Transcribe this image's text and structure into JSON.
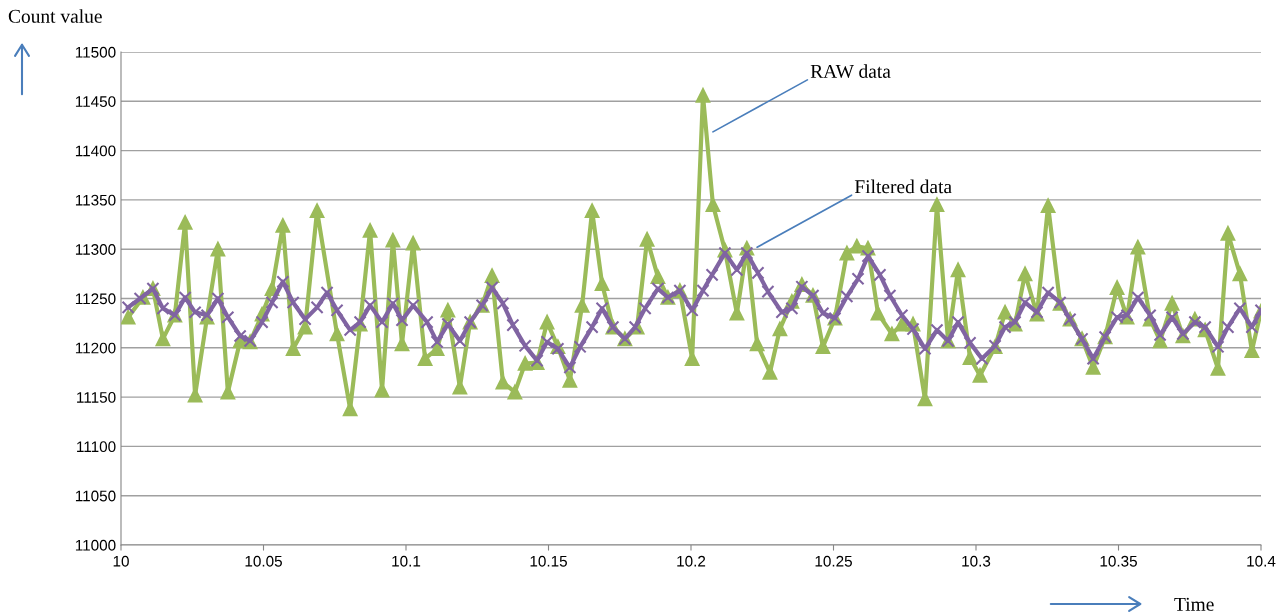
{
  "chart_data": {
    "type": "line",
    "xlabel": "Time",
    "ylabel": "Count value",
    "xlim": [
      10,
      10.4
    ],
    "xticks": [
      10,
      10.05,
      10.1,
      10.15,
      10.2,
      10.25,
      10.3,
      10.35,
      10.4
    ],
    "ylim": [
      11000,
      11500
    ],
    "yticks": [
      11000,
      11050,
      11100,
      11150,
      11200,
      11250,
      11300,
      11350,
      11400,
      11450,
      11500
    ],
    "grid": "y",
    "annotations": [
      {
        "text": "RAW data",
        "x": 10.2077,
        "y": 11419
      },
      {
        "text": "Filtered data",
        "x": 10.2232,
        "y": 11302
      }
    ],
    "series": [
      {
        "color": "#9bbb59",
        "marker": "triangle",
        "line_style": "solid",
        "x": [
          10.0025,
          10.0077,
          10.0112,
          10.0147,
          10.0189,
          10.0225,
          10.026,
          10.0302,
          10.034,
          10.0375,
          10.0418,
          10.0453,
          10.0495,
          10.053,
          10.0568,
          10.0604,
          10.0646,
          10.0688,
          10.0758,
          10.0804,
          10.0839,
          10.0874,
          10.0916,
          10.0954,
          10.0986,
          10.1025,
          10.1067,
          10.1109,
          10.1147,
          10.1189,
          10.1225,
          10.1267,
          10.1302,
          10.134,
          10.1382,
          10.1418,
          10.146,
          10.1495,
          10.1533,
          10.1575,
          10.1618,
          10.1653,
          10.1688,
          10.1726,
          10.1768,
          10.1811,
          10.1846,
          10.1884,
          10.1919,
          10.1961,
          10.2004,
          10.2042,
          10.2077,
          10.2119,
          10.2161,
          10.2196,
          10.2232,
          10.2277,
          10.2312,
          10.2354,
          10.2389,
          10.2428,
          10.2463,
          10.2505,
          10.2547,
          10.2582,
          10.2621,
          10.2656,
          10.2705,
          10.274,
          10.2779,
          10.2821,
          10.2863,
          10.2902,
          10.2937,
          10.2979,
          10.3014,
          10.3067,
          10.3102,
          10.3137,
          10.3172,
          10.3214,
          10.3253,
          10.3295,
          10.333,
          10.3372,
          10.3411,
          10.3453,
          10.3495,
          10.353,
          10.3568,
          10.3611,
          10.3646,
          10.3688,
          10.3726,
          10.3768,
          10.3804,
          10.3849,
          10.3884,
          10.3926,
          10.3968,
          10.4
        ],
        "values": [
          11231,
          11251,
          11260,
          11209,
          11233,
          11327,
          11152,
          11231,
          11300,
          11155,
          11207,
          11206,
          11234,
          11260,
          11324,
          11199,
          11221,
          11339,
          11214,
          11138,
          11224,
          11319,
          11157,
          11309,
          11204,
          11306,
          11189,
          11199,
          11238,
          11160,
          11226,
          11243,
          11273,
          11165,
          11155,
          11184,
          11185,
          11226,
          11201,
          11167,
          11243,
          11339,
          11265,
          11221,
          11209,
          11221,
          11310,
          11272,
          11251,
          11258,
          11189,
          11456,
          11345,
          11299,
          11235,
          11301,
          11204,
          11175,
          11219,
          11247,
          11264,
          11253,
          11201,
          11230,
          11296,
          11303,
          11301,
          11235,
          11214,
          11224,
          11224,
          11148,
          11345,
          11207,
          11279,
          11190,
          11172,
          11201,
          11236,
          11224,
          11275,
          11234,
          11344,
          11245,
          11229,
          11209,
          11180,
          11211,
          11261,
          11231,
          11302,
          11229,
          11207,
          11245,
          11212,
          11229,
          11218,
          11179,
          11316,
          11275,
          11197,
          11237
        ]
      },
      {
        "color": "#8064a2",
        "marker": "cross",
        "line_style": "solid",
        "x": [
          10.0025,
          10.0067,
          10.0112,
          10.0147,
          10.0189,
          10.0225,
          10.026,
          10.0302,
          10.034,
          10.0375,
          10.0418,
          10.0453,
          10.0495,
          10.053,
          10.0568,
          10.0604,
          10.0646,
          10.0688,
          10.0723,
          10.0758,
          10.0804,
          10.0839,
          10.0874,
          10.0916,
          10.0954,
          10.0986,
          10.1025,
          10.1074,
          10.1109,
          10.1147,
          10.1189,
          10.1225,
          10.1267,
          10.1302,
          10.134,
          10.1375,
          10.1418,
          10.146,
          10.1495,
          10.1533,
          10.1575,
          10.1611,
          10.1653,
          10.1688,
          10.1726,
          10.1768,
          10.1804,
          10.1839,
          10.1884,
          10.1919,
          10.1961,
          10.2004,
          10.2042,
          10.2074,
          10.2119,
          10.2161,
          10.2196,
          10.2235,
          10.227,
          10.2319,
          10.2354,
          10.2389,
          10.2428,
          10.2463,
          10.2505,
          10.2547,
          10.2586,
          10.2621,
          10.2663,
          10.2698,
          10.274,
          10.2779,
          10.2821,
          10.2863,
          10.2902,
          10.2937,
          10.2979,
          10.3021,
          10.3067,
          10.3102,
          10.3137,
          10.3172,
          10.3214,
          10.3253,
          10.3295,
          10.333,
          10.3372,
          10.3411,
          10.3453,
          10.3495,
          10.353,
          10.3568,
          10.3611,
          10.3646,
          10.3688,
          10.3726,
          10.3768,
          10.3804,
          10.3849,
          10.3884,
          10.3926,
          10.3968,
          10.4
        ],
        "values": [
          11241,
          11250,
          11260,
          11240,
          11233,
          11251,
          11236,
          11233,
          11250,
          11231,
          11212,
          11207,
          11226,
          11246,
          11267,
          11246,
          11229,
          11241,
          11256,
          11238,
          11218,
          11226,
          11243,
          11226,
          11245,
          11228,
          11243,
          11226,
          11206,
          11224,
          11207,
          11226,
          11243,
          11261,
          11245,
          11223,
          11202,
          11187,
          11206,
          11199,
          11180,
          11201,
          11221,
          11240,
          11221,
          11209,
          11221,
          11240,
          11260,
          11251,
          11258,
          11238,
          11258,
          11274,
          11296,
          11279,
          11296,
          11276,
          11257,
          11236,
          11240,
          11262,
          11253,
          11235,
          11230,
          11252,
          11270,
          11293,
          11274,
          11253,
          11233,
          11219,
          11199,
          11218,
          11207,
          11226,
          11205,
          11189,
          11202,
          11221,
          11226,
          11246,
          11236,
          11256,
          11246,
          11229,
          11209,
          11189,
          11211,
          11231,
          11233,
          11251,
          11233,
          11213,
          11231,
          11214,
          11226,
          11221,
          11201,
          11221,
          11240,
          11221,
          11238
        ]
      }
    ]
  }
}
